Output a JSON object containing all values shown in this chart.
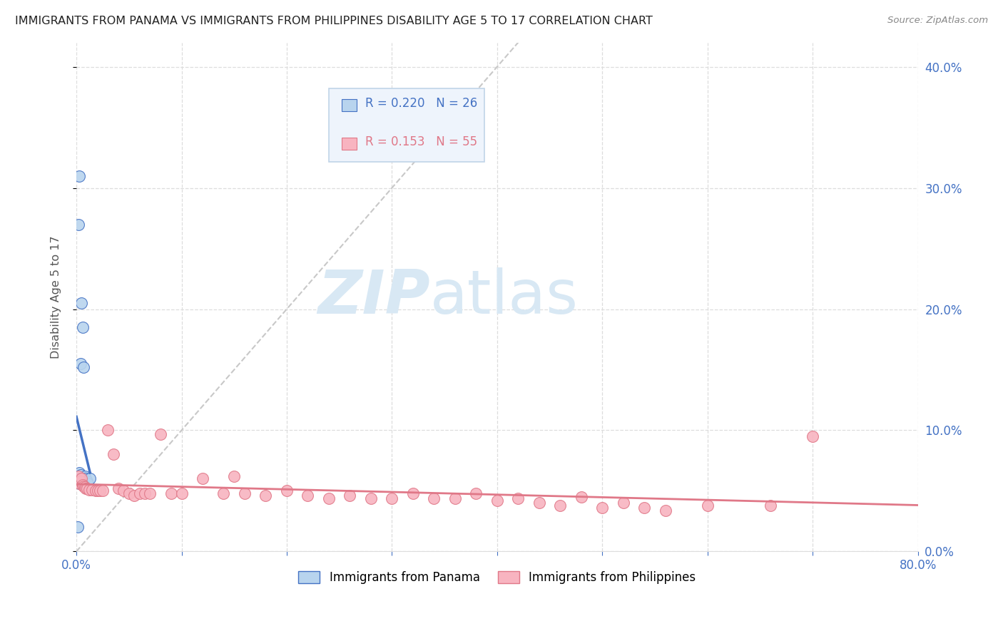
{
  "title": "IMMIGRANTS FROM PANAMA VS IMMIGRANTS FROM PHILIPPINES DISABILITY AGE 5 TO 17 CORRELATION CHART",
  "source": "Source: ZipAtlas.com",
  "ylabel": "Disability Age 5 to 17",
  "xlim": [
    0.0,
    0.8
  ],
  "ylim": [
    0.0,
    0.42
  ],
  "yticks": [
    0.0,
    0.1,
    0.2,
    0.3,
    0.4
  ],
  "panama_R": 0.22,
  "panama_N": 26,
  "philippines_R": 0.153,
  "philippines_N": 55,
  "panama_color": "#b8d4ee",
  "philippines_color": "#f8b4c0",
  "panama_line_color": "#4472c4",
  "philippines_line_color": "#e07888",
  "diagonal_color": "#c8c8c8",
  "background_color": "#ffffff",
  "grid_color": "#dddddd",
  "title_color": "#222222",
  "axis_label_color": "#555555",
  "tick_color_blue": "#4472c4",
  "watermark_zip": "ZIP",
  "watermark_atlas": "atlas",
  "watermark_color": "#d8e8f4",
  "panama_scatter_x": [
    0.001,
    0.001,
    0.002,
    0.002,
    0.003,
    0.003,
    0.003,
    0.003,
    0.003,
    0.003,
    0.004,
    0.004,
    0.004,
    0.004,
    0.005,
    0.005,
    0.005,
    0.006,
    0.006,
    0.007,
    0.007,
    0.008,
    0.009,
    0.01,
    0.011,
    0.013
  ],
  "panama_scatter_y": [
    0.062,
    0.02,
    0.27,
    0.058,
    0.31,
    0.065,
    0.06,
    0.058,
    0.057,
    0.056,
    0.155,
    0.063,
    0.06,
    0.057,
    0.205,
    0.06,
    0.056,
    0.185,
    0.058,
    0.152,
    0.06,
    0.062,
    0.06,
    0.058,
    0.056,
    0.06
  ],
  "philippines_scatter_x": [
    0.001,
    0.002,
    0.003,
    0.004,
    0.005,
    0.006,
    0.007,
    0.008,
    0.009,
    0.01,
    0.012,
    0.015,
    0.018,
    0.02,
    0.022,
    0.025,
    0.03,
    0.035,
    0.04,
    0.045,
    0.05,
    0.055,
    0.06,
    0.065,
    0.07,
    0.08,
    0.09,
    0.1,
    0.12,
    0.14,
    0.15,
    0.16,
    0.18,
    0.2,
    0.22,
    0.24,
    0.26,
    0.28,
    0.3,
    0.32,
    0.34,
    0.36,
    0.38,
    0.4,
    0.42,
    0.44,
    0.46,
    0.48,
    0.5,
    0.52,
    0.54,
    0.56,
    0.6,
    0.66,
    0.7
  ],
  "philippines_scatter_y": [
    0.058,
    0.062,
    0.056,
    0.058,
    0.06,
    0.055,
    0.054,
    0.053,
    0.052,
    0.052,
    0.051,
    0.051,
    0.05,
    0.05,
    0.05,
    0.05,
    0.1,
    0.08,
    0.052,
    0.05,
    0.048,
    0.046,
    0.048,
    0.048,
    0.048,
    0.097,
    0.048,
    0.048,
    0.06,
    0.048,
    0.062,
    0.048,
    0.046,
    0.05,
    0.046,
    0.044,
    0.046,
    0.044,
    0.044,
    0.048,
    0.044,
    0.044,
    0.048,
    0.042,
    0.044,
    0.04,
    0.038,
    0.045,
    0.036,
    0.04,
    0.036,
    0.034,
    0.038,
    0.038,
    0.095
  ],
  "legend_facecolor": "#eef4fc",
  "legend_edgecolor": "#c0d4e8"
}
